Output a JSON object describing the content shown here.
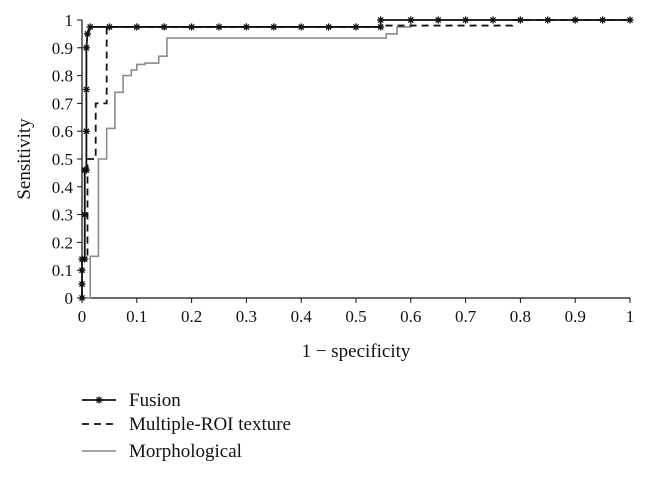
{
  "chart_data": {
    "type": "line",
    "title": "",
    "xlabel": "1 − specificity",
    "ylabel": "Sensitivity",
    "xlim": [
      0,
      1
    ],
    "ylim": [
      0,
      1
    ],
    "x_ticks": [
      "0",
      "0.1",
      "0.2",
      "0.3",
      "0.4",
      "0.5",
      "0.6",
      "0.7",
      "0.8",
      "0.9",
      "1"
    ],
    "y_ticks": [
      "0",
      "0.1",
      "0.2",
      "0.3",
      "0.4",
      "0.5",
      "0.6",
      "0.7",
      "0.8",
      "0.9",
      "1"
    ],
    "grid": false,
    "legend_position": "bottom-left",
    "series": [
      {
        "name": "Fusion",
        "style": "solid-star",
        "color": "#111111",
        "points": [
          [
            0,
            0
          ],
          [
            0,
            0.05
          ],
          [
            0,
            0.1
          ],
          [
            0,
            0.14
          ],
          [
            0.005,
            0.14
          ],
          [
            0.005,
            0.3
          ],
          [
            0.005,
            0.46
          ],
          [
            0.008,
            0.46
          ],
          [
            0.008,
            0.6
          ],
          [
            0.008,
            0.75
          ],
          [
            0.008,
            0.9
          ],
          [
            0.01,
            0.95
          ],
          [
            0.015,
            0.975
          ],
          [
            0.05,
            0.975
          ],
          [
            0.1,
            0.975
          ],
          [
            0.15,
            0.975
          ],
          [
            0.2,
            0.975
          ],
          [
            0.25,
            0.975
          ],
          [
            0.3,
            0.975
          ],
          [
            0.35,
            0.975
          ],
          [
            0.4,
            0.975
          ],
          [
            0.45,
            0.975
          ],
          [
            0.5,
            0.975
          ],
          [
            0.545,
            0.975
          ],
          [
            0.545,
            1.0
          ],
          [
            0.6,
            1.0
          ],
          [
            0.65,
            1.0
          ],
          [
            0.7,
            1.0
          ],
          [
            0.75,
            1.0
          ],
          [
            0.8,
            1.0
          ],
          [
            0.85,
            1.0
          ],
          [
            0.9,
            1.0
          ],
          [
            0.95,
            1.0
          ],
          [
            1.0,
            1.0
          ]
        ]
      },
      {
        "name": "Multiple-ROI texture",
        "style": "dashed",
        "color": "#111111",
        "points": [
          [
            0,
            0
          ],
          [
            0,
            0.14
          ],
          [
            0.01,
            0.14
          ],
          [
            0.01,
            0.5
          ],
          [
            0.025,
            0.5
          ],
          [
            0.025,
            0.7
          ],
          [
            0.045,
            0.7
          ],
          [
            0.045,
            0.975
          ],
          [
            0.55,
            0.975
          ],
          [
            0.55,
            0.98
          ],
          [
            0.785,
            0.98
          ],
          [
            0.785,
            1.0
          ],
          [
            1.0,
            1.0
          ]
        ]
      },
      {
        "name": "Morphological",
        "style": "solid-gray",
        "color": "#8c8c8c",
        "points": [
          [
            0,
            0
          ],
          [
            0.015,
            0
          ],
          [
            0.015,
            0.15
          ],
          [
            0.03,
            0.15
          ],
          [
            0.03,
            0.5
          ],
          [
            0.045,
            0.5
          ],
          [
            0.045,
            0.61
          ],
          [
            0.06,
            0.61
          ],
          [
            0.06,
            0.74
          ],
          [
            0.075,
            0.74
          ],
          [
            0.075,
            0.8
          ],
          [
            0.09,
            0.8
          ],
          [
            0.09,
            0.82
          ],
          [
            0.1,
            0.82
          ],
          [
            0.1,
            0.84
          ],
          [
            0.115,
            0.84
          ],
          [
            0.115,
            0.845
          ],
          [
            0.14,
            0.845
          ],
          [
            0.14,
            0.87
          ],
          [
            0.155,
            0.87
          ],
          [
            0.155,
            0.935
          ],
          [
            0.555,
            0.935
          ],
          [
            0.555,
            0.95
          ],
          [
            0.575,
            0.95
          ],
          [
            0.575,
            0.975
          ],
          [
            0.6,
            0.975
          ],
          [
            0.6,
            1.0
          ],
          [
            1.0,
            1.0
          ]
        ]
      }
    ]
  }
}
